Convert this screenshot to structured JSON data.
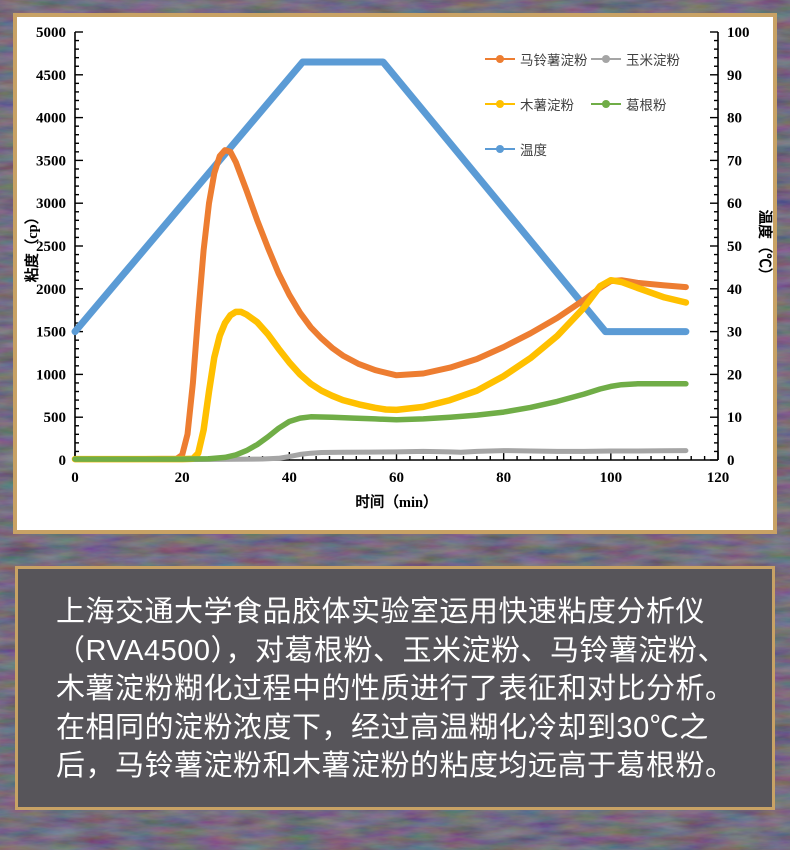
{
  "colors": {
    "panel_border": "#C8A265",
    "chart_bg": "#FFFFFF",
    "caption_bg": "#57555A",
    "caption_text": "#FFFFFF",
    "background_base": "#17141A",
    "axis": "#000000"
  },
  "caption": {
    "text": "上海交通大学食品胶体实验室运用快速粘度分析仪（RVA4500），对葛根粉、玉米淀粉、马铃薯淀粉、木薯淀粉糊化过程中的性质进行了表征和对比分析。在相同的淀粉浓度下，经过高温糊化冷却到30℃之后，马铃薯淀粉和木薯淀粉的粘度均远高于葛根粉。"
  },
  "chart_data": {
    "type": "line",
    "title": "",
    "xlabel": "时间（min）",
    "ylabel_left": "粘度（cp）",
    "ylabel_right": "温度（℃）",
    "xlim": [
      0,
      120
    ],
    "x_major_tick": 20,
    "x_minor_tick": 2.5,
    "ylim_left": [
      0,
      5000
    ],
    "yleft_major_tick": 500,
    "yleft_minor_tick": 100,
    "ylim_right": [
      0,
      100
    ],
    "yright_major_tick": 10,
    "yright_minor_tick": 2,
    "grid": false,
    "legend_position": "top-right-inside",
    "draw_order": [
      4,
      0,
      1,
      2,
      3
    ],
    "series": [
      {
        "name": "马铃薯淀粉",
        "color": "#ED7D31",
        "axis": "left",
        "stroke_width": 6,
        "x": [
          0,
          10,
          19,
          20,
          21,
          22,
          23,
          24,
          25,
          26,
          27,
          28,
          29,
          30,
          32,
          34,
          36,
          38,
          40,
          42,
          44,
          46,
          48,
          50,
          53,
          56,
          60,
          65,
          70,
          75,
          80,
          85,
          90,
          95,
          98,
          100,
          102,
          105,
          110,
          114
        ],
        "y": [
          10,
          10,
          15,
          60,
          300,
          900,
          1700,
          2450,
          3000,
          3350,
          3550,
          3620,
          3600,
          3480,
          3150,
          2800,
          2480,
          2180,
          1930,
          1720,
          1550,
          1420,
          1310,
          1220,
          1120,
          1050,
          990,
          1010,
          1080,
          1180,
          1320,
          1480,
          1660,
          1870,
          2010,
          2090,
          2100,
          2070,
          2040,
          2020
        ]
      },
      {
        "name": "玉米淀粉",
        "color": "#A5A5A5",
        "axis": "left",
        "stroke_width": 5,
        "x": [
          0,
          10,
          20,
          30,
          35,
          38,
          40,
          42,
          44,
          46,
          50,
          55,
          60,
          65,
          70,
          72,
          75,
          80,
          85,
          90,
          95,
          100,
          105,
          110,
          114
        ],
        "y": [
          5,
          5,
          5,
          8,
          12,
          20,
          40,
          65,
          80,
          88,
          90,
          92,
          95,
          100,
          95,
          90,
          100,
          110,
          105,
          100,
          100,
          105,
          105,
          108,
          110
        ]
      },
      {
        "name": "木薯淀粉",
        "color": "#FFC000",
        "axis": "left",
        "stroke_width": 6.5,
        "x": [
          0,
          10,
          20,
          22,
          23,
          24,
          25,
          26,
          27,
          28,
          29,
          30,
          31,
          32,
          34,
          36,
          38,
          40,
          42,
          44,
          46,
          48,
          50,
          53,
          56,
          58,
          60,
          65,
          70,
          75,
          80,
          85,
          90,
          95,
          98,
          100,
          102,
          105,
          110,
          114
        ],
        "y": [
          10,
          10,
          10,
          15,
          80,
          350,
          800,
          1200,
          1450,
          1600,
          1690,
          1730,
          1730,
          1700,
          1610,
          1470,
          1300,
          1140,
          1000,
          890,
          810,
          750,
          700,
          650,
          610,
          590,
          585,
          620,
          700,
          810,
          980,
          1190,
          1450,
          1780,
          2030,
          2100,
          2080,
          2010,
          1900,
          1840
        ]
      },
      {
        "name": "葛根粉",
        "color": "#70AD47",
        "axis": "left",
        "stroke_width": 5.5,
        "x": [
          0,
          10,
          20,
          25,
          28,
          30,
          32,
          34,
          36,
          38,
          40,
          42,
          44,
          48,
          52,
          56,
          60,
          65,
          70,
          75,
          80,
          85,
          90,
          95,
          98,
          100,
          102,
          105,
          110,
          114
        ],
        "y": [
          10,
          10,
          10,
          15,
          30,
          60,
          110,
          180,
          270,
          370,
          450,
          490,
          505,
          500,
          490,
          480,
          470,
          480,
          500,
          525,
          560,
          615,
          685,
          770,
          830,
          860,
          880,
          890,
          890,
          890
        ]
      },
      {
        "name": "温度",
        "color": "#5B9BD5",
        "axis": "right",
        "stroke_width": 7,
        "x": [
          0,
          42.5,
          57.5,
          99,
          114
        ],
        "y": [
          30,
          93,
          93,
          30,
          30
        ]
      }
    ]
  }
}
